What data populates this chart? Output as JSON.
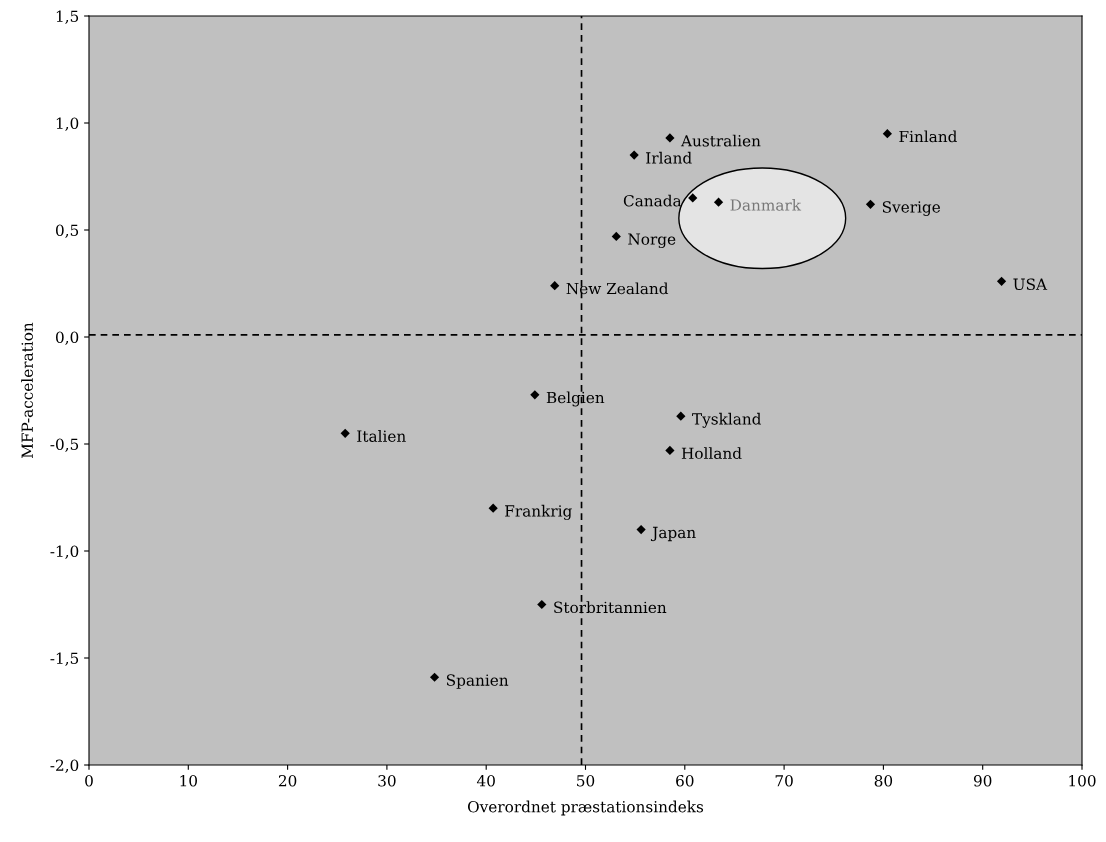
{
  "chart_data": {
    "type": "scatter",
    "xlabel": "Overordnet præstationsindeks",
    "ylabel": "MFP-acceleration",
    "x": [
      58.5,
      80.4,
      54.9,
      60.8,
      63.4,
      78.7,
      53.1,
      46.9,
      91.9,
      44.9,
      59.6,
      25.8,
      58.5,
      40.7,
      55.6,
      45.6,
      34.8
    ],
    "values": [
      0.93,
      0.95,
      0.85,
      0.65,
      0.63,
      0.62,
      0.47,
      0.24,
      0.26,
      -0.27,
      -0.37,
      -0.45,
      -0.53,
      -0.8,
      -0.9,
      -1.25,
      -1.59
    ],
    "color": "#000000",
    "marker": "diamond",
    "grid": false,
    "xlim": [
      0,
      100
    ],
    "xticks": [
      0,
      10,
      20,
      30,
      40,
      50,
      60,
      70,
      80,
      90,
      100
    ],
    "ylim": [
      -2.0,
      1.5
    ],
    "yticks": [
      {
        "value": -2.0,
        "label": "-2,0"
      },
      {
        "value": -1.5,
        "label": "-1,5"
      },
      {
        "value": -1.0,
        "label": "-1,0"
      },
      {
        "value": -0.5,
        "label": "-0,5"
      },
      {
        "value": 0.0,
        "label": "0,0"
      },
      {
        "value": 0.5,
        "label": "0,5"
      },
      {
        "value": 1.0,
        "label": "1,0"
      },
      {
        "value": 1.5,
        "label": "1,5"
      }
    ],
    "ref_lines": [
      {
        "axis": "x",
        "value": 49.6,
        "line_style": "dashed",
        "color": "#000000"
      },
      {
        "axis": "y",
        "value": 0.01,
        "line_style": "dashed",
        "color": "#000000"
      }
    ],
    "annotations": [
      {
        "text": "Australien",
        "x": 58.5,
        "y": 0.93
      },
      {
        "text": "Finland",
        "x": 80.4,
        "y": 0.95
      },
      {
        "text": "Irland",
        "x": 54.9,
        "y": 0.85
      },
      {
        "text": "Canada",
        "x": 60.8,
        "y": 0.65
      },
      {
        "text": "Danmark",
        "x": 63.4,
        "y": 0.63
      },
      {
        "text": "Sverige",
        "x": 78.7,
        "y": 0.62
      },
      {
        "text": "Norge",
        "x": 53.1,
        "y": 0.47
      },
      {
        "text": "New Zealand",
        "x": 46.9,
        "y": 0.24
      },
      {
        "text": "USA",
        "x": 91.9,
        "y": 0.26
      },
      {
        "text": "Belgien",
        "x": 44.9,
        "y": -0.27
      },
      {
        "text": "Tyskland",
        "x": 59.6,
        "y": -0.37
      },
      {
        "text": "Italien",
        "x": 25.8,
        "y": -0.45
      },
      {
        "text": "Holland",
        "x": 58.5,
        "y": -0.53
      },
      {
        "text": "Frankrig",
        "x": 40.7,
        "y": -0.8
      },
      {
        "text": "Japan",
        "x": 55.6,
        "y": -0.9
      },
      {
        "text": "Storbritannien",
        "x": 45.6,
        "y": -1.25
      },
      {
        "text": "Spanien",
        "x": 34.8,
        "y": -1.59
      }
    ]
  }
}
